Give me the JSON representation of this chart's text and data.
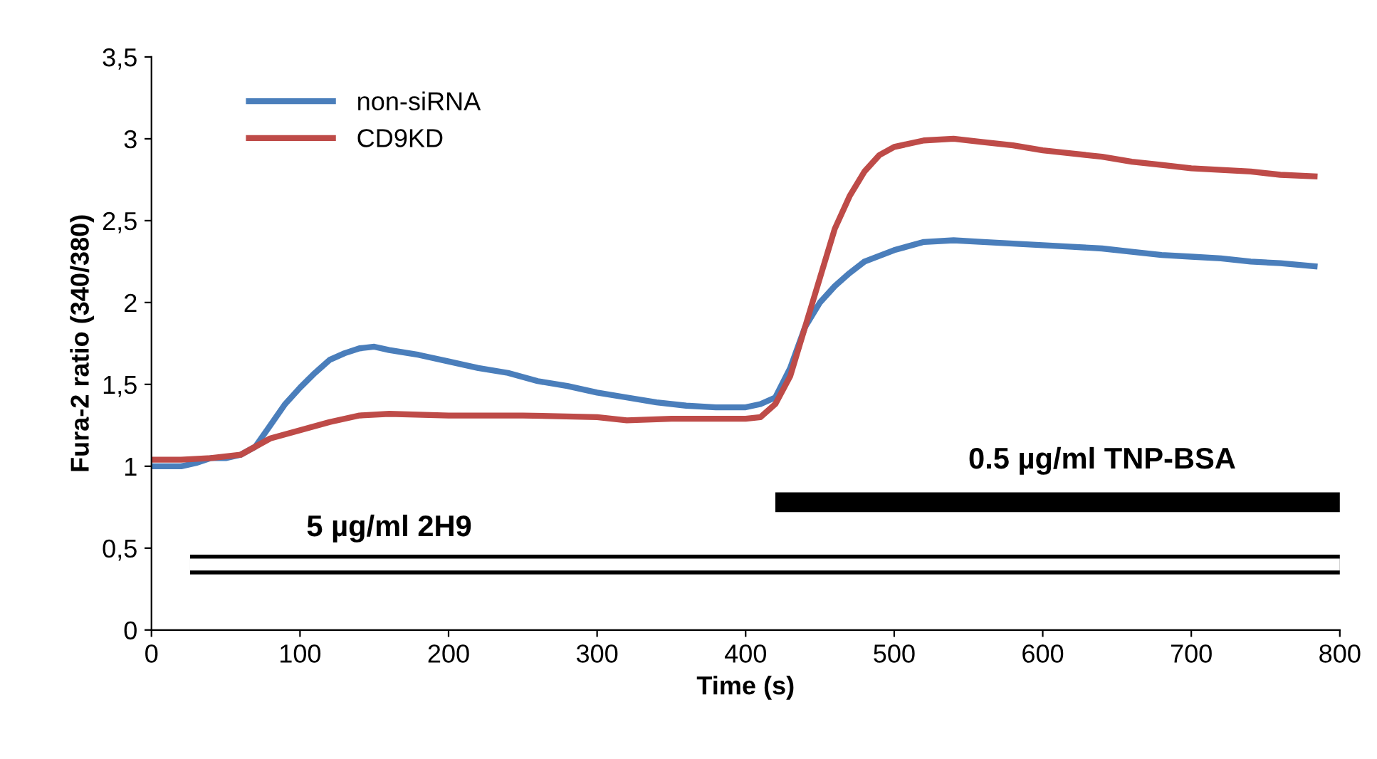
{
  "chart_data": {
    "type": "line",
    "xlabel": "Time (s)",
    "ylabel": "Fura-2 ratio (340/380)",
    "xlim": [
      0,
      800
    ],
    "xticks": [
      0,
      100,
      200,
      300,
      400,
      500,
      600,
      700,
      800
    ],
    "ylim": [
      0,
      3.5
    ],
    "yticks": [
      0,
      {
        "value": 0.5,
        "label": "0,5"
      },
      1,
      {
        "value": 1.5,
        "label": "1,5"
      },
      2,
      {
        "value": 2.5,
        "label": "2,5"
      },
      3,
      {
        "value": 3.5,
        "label": "3,5"
      }
    ],
    "grid": false,
    "legend": "top left",
    "line_style": "solid",
    "marker": "none",
    "series": [
      {
        "name": "non-siRNA",
        "color": "#4a7ebb",
        "x": [
          0,
          20,
          30,
          40,
          50,
          60,
          70,
          80,
          90,
          100,
          110,
          120,
          130,
          140,
          150,
          160,
          180,
          200,
          220,
          240,
          260,
          280,
          300,
          320,
          340,
          360,
          380,
          400,
          410,
          420,
          430,
          440,
          450,
          460,
          470,
          480,
          500,
          520,
          540,
          560,
          580,
          600,
          620,
          640,
          660,
          680,
          700,
          720,
          740,
          760,
          785
        ],
        "values": [
          1.0,
          1.0,
          1.02,
          1.05,
          1.05,
          1.07,
          1.12,
          1.25,
          1.38,
          1.48,
          1.57,
          1.65,
          1.69,
          1.72,
          1.73,
          1.71,
          1.68,
          1.64,
          1.6,
          1.57,
          1.52,
          1.49,
          1.45,
          1.42,
          1.39,
          1.37,
          1.36,
          1.36,
          1.38,
          1.42,
          1.6,
          1.85,
          2.0,
          2.1,
          2.18,
          2.25,
          2.32,
          2.37,
          2.38,
          2.37,
          2.36,
          2.35,
          2.34,
          2.33,
          2.31,
          2.29,
          2.28,
          2.27,
          2.25,
          2.24,
          2.22
        ]
      },
      {
        "name": "CD9KD",
        "color": "#be4b48",
        "x": [
          0,
          20,
          40,
          60,
          70,
          80,
          100,
          120,
          140,
          160,
          200,
          250,
          300,
          320,
          350,
          400,
          410,
          420,
          430,
          440,
          450,
          460,
          470,
          480,
          490,
          500,
          520,
          540,
          560,
          580,
          600,
          620,
          640,
          660,
          680,
          700,
          720,
          740,
          760,
          785
        ],
        "values": [
          1.04,
          1.04,
          1.05,
          1.07,
          1.12,
          1.17,
          1.22,
          1.27,
          1.31,
          1.32,
          1.31,
          1.31,
          1.3,
          1.28,
          1.29,
          1.29,
          1.3,
          1.38,
          1.55,
          1.85,
          2.15,
          2.45,
          2.65,
          2.8,
          2.9,
          2.95,
          2.99,
          3.0,
          2.98,
          2.96,
          2.93,
          2.91,
          2.89,
          2.86,
          2.84,
          2.82,
          2.81,
          2.8,
          2.78,
          2.77
        ]
      },
      {
        "color": "#000000",
        "x": [
          420,
          800
        ],
        "values": [
          0.78,
          0.78
        ]
      },
      {
        "color": "#000000",
        "x": [
          26,
          800
        ],
        "values": [
          0.4,
          0.4
        ]
      },
      {
        "color": "#ffffff",
        "x": [
          26,
          800
        ],
        "values": [
          0.4,
          0.4
        ]
      }
    ],
    "annotations": [
      "0.5 µg/ml TNP-BSA",
      "5 µg/ml 2H9"
    ]
  }
}
